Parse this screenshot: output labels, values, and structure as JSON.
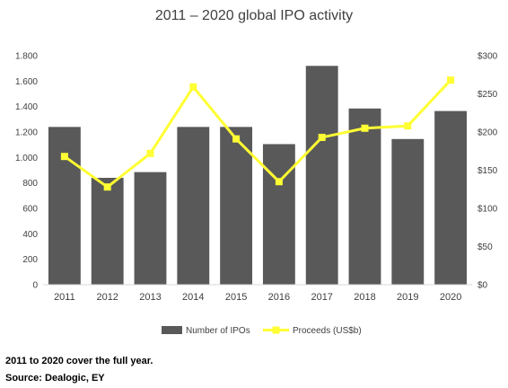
{
  "chart_data": {
    "type": "bar+line",
    "title": "2011 – 2020 global IPO activity",
    "categories": [
      "2011",
      "2012",
      "2013",
      "2014",
      "2015",
      "2016",
      "2017",
      "2018",
      "2019",
      "2020"
    ],
    "series": [
      {
        "name": "Number of IPOs",
        "type": "bar",
        "axis": "left",
        "color": "#595959",
        "values": [
          1240,
          840,
          885,
          1240,
          1240,
          1105,
          1720,
          1385,
          1145,
          1365
        ]
      },
      {
        "name": "Proceeds (US$b)",
        "type": "line",
        "axis": "right",
        "color": "#ffff33",
        "marker": "square",
        "values": [
          168,
          128,
          172,
          259,
          191,
          135,
          193,
          205,
          208,
          268
        ]
      }
    ],
    "y_left": {
      "ylim": [
        0,
        1800
      ],
      "ticks": [
        0,
        200,
        400,
        600,
        800,
        1000,
        1200,
        1400,
        1600,
        1800
      ],
      "tick_labels": [
        "0",
        "200",
        "400",
        "600",
        "800",
        "1.000",
        "1.200",
        "1.400",
        "1.600",
        "1.800"
      ]
    },
    "y_right": {
      "ylim": [
        0,
        300
      ],
      "ticks": [
        0,
        50,
        100,
        150,
        200,
        250,
        300
      ],
      "tick_labels": [
        "$0",
        "$50",
        "$100",
        "$150",
        "$200",
        "$250",
        "$300"
      ]
    },
    "grid": false,
    "legend_position": "bottom"
  },
  "notes": {
    "period": "2011 to 2020 cover the full year.",
    "source": "Source: Dealogic, EY"
  },
  "colors": {
    "bar": "#595959",
    "line": "#ffff33",
    "text": "#404040"
  }
}
